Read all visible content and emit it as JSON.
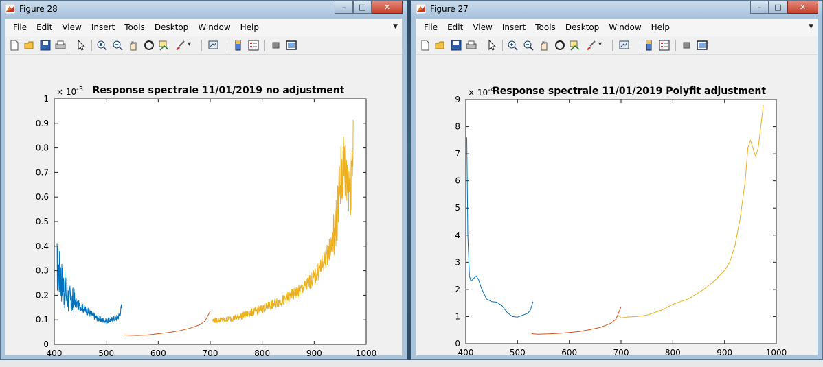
{
  "windows": [
    {
      "id": "left",
      "title": "Figure 28",
      "menu": [
        "File",
        "Edit",
        "View",
        "Insert",
        "Tools",
        "Desktop",
        "Window",
        "Help"
      ],
      "plot": {
        "title": "Response spectrale 11/01/2019 no adjustment",
        "exponent_base": "× 10",
        "exponent_power": "-3",
        "xticks": [
          "400",
          "500",
          "600",
          "700",
          "800",
          "900",
          "1000"
        ],
        "yticks": [
          "0",
          "0.1",
          "0.2",
          "0.3",
          "0.4",
          "0.5",
          "0.6",
          "0.7",
          "0.8",
          "0.9",
          "1"
        ]
      }
    },
    {
      "id": "right",
      "title": "Figure 27",
      "menu": [
        "File",
        "Edit",
        "View",
        "Insert",
        "Tools",
        "Desktop",
        "Window",
        "Help"
      ],
      "plot": {
        "title": "Response spectrale 11/01/2019 Polyfit adjustment",
        "exponent_base": "× 10",
        "exponent_power": "-4",
        "xticks": [
          "400",
          "500",
          "600",
          "700",
          "800",
          "900",
          "1000"
        ],
        "yticks": [
          "0",
          "1",
          "2",
          "3",
          "4",
          "5",
          "6",
          "7",
          "8",
          "9"
        ]
      }
    }
  ],
  "window_buttons": {
    "minimize": "–",
    "maximize": "□",
    "close": "✕"
  },
  "menu_overflow_icon": "chevron-down-icon",
  "toolbar_icons": [
    "new-figure-icon",
    "open-file-icon",
    "save-icon",
    "print-icon",
    "pointer-icon",
    "zoom-in-icon",
    "zoom-out-icon",
    "pan-icon",
    "rotate-3d-icon",
    "data-cursor-icon",
    "brush-icon",
    "link-plot-icon",
    "colorbar-icon",
    "legend-icon",
    "hide-plot-tools-icon",
    "show-plot-tools-icon"
  ],
  "colors": {
    "series_blue": "#0072bd",
    "series_red": "#d95319",
    "series_yellow": "#edb120",
    "title_bar": "#a9c3db",
    "close_button": "#c4412b"
  },
  "chart_data": [
    {
      "type": "line",
      "title": "Response spectrale 11/01/2019 no adjustment",
      "xlabel": "",
      "ylabel": "",
      "xlim": [
        400,
        1000
      ],
      "ylim": [
        0,
        0.001
      ],
      "y_scale_exponent": -3,
      "grid": false,
      "series": [
        {
          "color": "#0072bd",
          "noisy": true,
          "x": [
            405,
            410,
            420,
            430,
            440,
            450,
            460,
            470,
            480,
            490,
            500,
            510,
            520,
            525,
            530
          ],
          "y": [
            0.00032,
            0.00029,
            0.00022,
            0.00018,
            0.00017,
            0.000155,
            0.00014,
            0.000125,
            0.00011,
            0.0001,
            9.5e-05,
            0.0001,
            0.000108,
            0.000118,
            0.000155
          ]
        },
        {
          "color": "#d95319",
          "noisy": false,
          "x": [
            535,
            560,
            580,
            600,
            620,
            640,
            660,
            680,
            690,
            700
          ],
          "y": [
            3.8e-05,
            3.6e-05,
            3.8e-05,
            4.3e-05,
            4.8e-05,
            5.5e-05,
            6.5e-05,
            8e-05,
            9.5e-05,
            0.000135
          ]
        },
        {
          "color": "#edb120",
          "noisy": true,
          "x": [
            705,
            730,
            760,
            800,
            840,
            870,
            900,
            920,
            930,
            940,
            945,
            950,
            955,
            960,
            965,
            970,
            975
          ],
          "y": [
            9.7e-05,
            0.0001,
            0.000115,
            0.000145,
            0.00018,
            0.000215,
            0.00027,
            0.00034,
            0.00039,
            0.00046,
            0.00055,
            0.00065,
            0.00072,
            0.0007,
            0.00068,
            0.00066,
            0.00085
          ]
        }
      ]
    },
    {
      "type": "line",
      "title": "Response spectrale 11/01/2019 Polyfit adjustment",
      "xlabel": "",
      "ylabel": "",
      "xlim": [
        400,
        1000
      ],
      "ylim": [
        0,
        0.0009
      ],
      "y_scale_exponent": -4,
      "grid": false,
      "series": [
        {
          "color": "#0072bd",
          "x": [
            402,
            404,
            407,
            410,
            415,
            420,
            425,
            430,
            440,
            450,
            460,
            470,
            480,
            490,
            500,
            510,
            520,
            525,
            530
          ],
          "y": [
            0.00076,
            0.0004,
            0.00025,
            0.00023,
            0.00024,
            0.00025,
            0.000235,
            0.000205,
            0.000165,
            0.000155,
            0.000153,
            0.00014,
            0.000115,
            0.0001,
            9.8e-05,
            0.000105,
            0.000112,
            0.000125,
            0.000155
          ]
        },
        {
          "color": "#d95319",
          "x": [
            525,
            530,
            540,
            560,
            580,
            600,
            620,
            640,
            660,
            680,
            690,
            700
          ],
          "y": [
            4e-05,
            3.6e-05,
            3.5e-05,
            3.6e-05,
            3.8e-05,
            4.1e-05,
            4.5e-05,
            5.2e-05,
            6e-05,
            7.5e-05,
            9e-05,
            0.000135
          ]
        },
        {
          "color": "#edb120",
          "x": [
            695,
            700,
            710,
            730,
            750,
            780,
            800,
            830,
            860,
            880,
            900,
            910,
            920,
            930,
            940,
            945,
            950,
            955,
            960,
            965,
            970,
            975
          ],
          "y": [
            0.000105,
            9.5e-05,
            9.8e-05,
            0.0001,
            0.000105,
            0.000125,
            0.000145,
            0.000165,
            0.0002,
            0.00023,
            0.00027,
            0.0003,
            0.00036,
            0.00046,
            0.0006,
            0.00072,
            0.00075,
            0.00072,
            0.00069,
            0.00072,
            0.0008,
            0.00088
          ]
        }
      ]
    }
  ]
}
